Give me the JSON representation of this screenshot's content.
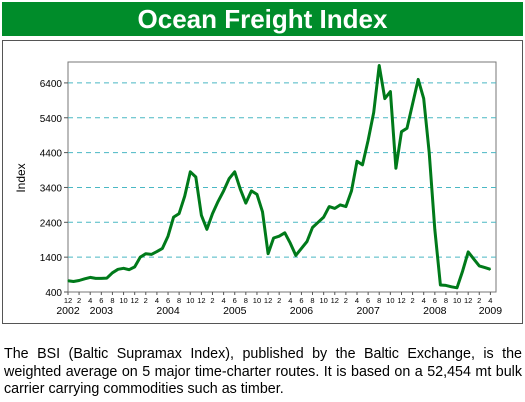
{
  "header": {
    "title": "Ocean Freight Index"
  },
  "caption": "The BSI (Baltic Supramax Index), published by the Baltic Exchange, is the weighted average on 5 major time-charter routes. It is based on a 52,454 mt bulk carrier carrying commodities such as timber.",
  "colors": {
    "banner": "#008c2a",
    "line": "#007a1a",
    "grid": "#4ab8c4"
  },
  "chart_data": {
    "type": "line",
    "title": "",
    "xlabel": "",
    "ylabel": "Index",
    "ylim": [
      400,
      7000
    ],
    "xlim": [
      2002.917,
      2009.334
    ],
    "y_ticks": [
      400,
      1400,
      2400,
      3400,
      4400,
      5400,
      6400
    ],
    "grid": "horizontal dashed",
    "legend": "none",
    "year_labels": [
      "2002",
      "2003",
      "2004",
      "2005",
      "2006",
      "2007",
      "2008",
      "2009"
    ],
    "month_ticks": [
      {
        "label": "12",
        "x": 2002.917
      },
      {
        "label": "2",
        "x": 2003.083
      },
      {
        "label": "4",
        "x": 2003.25
      },
      {
        "label": "6",
        "x": 2003.417
      },
      {
        "label": "8",
        "x": 2003.583
      },
      {
        "label": "10",
        "x": 2003.75
      },
      {
        "label": "12",
        "x": 2003.917
      },
      {
        "label": "2",
        "x": 2004.083
      },
      {
        "label": "4",
        "x": 2004.25
      },
      {
        "label": "6",
        "x": 2004.417
      },
      {
        "label": "8",
        "x": 2004.583
      },
      {
        "label": "10",
        "x": 2004.75
      },
      {
        "label": "12",
        "x": 2004.917
      },
      {
        "label": "2",
        "x": 2005.083
      },
      {
        "label": "4",
        "x": 2005.25
      },
      {
        "label": "6",
        "x": 2005.417
      },
      {
        "label": "8",
        "x": 2005.583
      },
      {
        "label": "10",
        "x": 2005.75
      },
      {
        "label": "12",
        "x": 2005.917
      },
      {
        "label": "2",
        "x": 2006.083
      },
      {
        "label": "4",
        "x": 2006.25
      },
      {
        "label": "6",
        "x": 2006.417
      },
      {
        "label": "8",
        "x": 2006.583
      },
      {
        "label": "10",
        "x": 2006.75
      },
      {
        "label": "12",
        "x": 2006.917
      },
      {
        "label": "2",
        "x": 2007.083
      },
      {
        "label": "4",
        "x": 2007.25
      },
      {
        "label": "6",
        "x": 2007.417
      },
      {
        "label": "8",
        "x": 2007.583
      },
      {
        "label": "10",
        "x": 2007.75
      },
      {
        "label": "12",
        "x": 2007.917
      },
      {
        "label": "2",
        "x": 2008.083
      },
      {
        "label": "4",
        "x": 2008.25
      },
      {
        "label": "6",
        "x": 2008.417
      },
      {
        "label": "8",
        "x": 2008.583
      },
      {
        "label": "10",
        "x": 2008.75
      },
      {
        "label": "12",
        "x": 2008.917
      },
      {
        "label": "2",
        "x": 2009.083
      },
      {
        "label": "4",
        "x": 2009.25
      }
    ],
    "year_label_x": [
      2002.917,
      2003.417,
      2004.417,
      2005.417,
      2006.417,
      2007.417,
      2008.417,
      2009.25
    ],
    "x": [
      2002.917,
      2003.0,
      2003.083,
      2003.167,
      2003.25,
      2003.333,
      2003.417,
      2003.5,
      2003.583,
      2003.667,
      2003.75,
      2003.833,
      2003.917,
      2004.0,
      2004.083,
      2004.167,
      2004.25,
      2004.333,
      2004.417,
      2004.5,
      2004.583,
      2004.667,
      2004.75,
      2004.833,
      2004.917,
      2005.0,
      2005.083,
      2005.167,
      2005.25,
      2005.333,
      2005.417,
      2005.5,
      2005.583,
      2005.667,
      2005.75,
      2005.833,
      2005.917,
      2006.0,
      2006.083,
      2006.167,
      2006.25,
      2006.333,
      2006.417,
      2006.5,
      2006.583,
      2006.667,
      2006.75,
      2006.833,
      2006.917,
      2007.0,
      2007.083,
      2007.167,
      2007.25,
      2007.333,
      2007.417,
      2007.5,
      2007.583,
      2007.667,
      2007.75,
      2007.833,
      2007.917,
      2008.0,
      2008.083,
      2008.167,
      2008.25,
      2008.333,
      2008.417,
      2008.5,
      2008.583,
      2008.667,
      2008.75,
      2008.833,
      2008.917,
      2009.0,
      2009.083,
      2009.167,
      2009.25
    ],
    "series": [
      {
        "values": [
          720,
          700,
          730,
          780,
          820,
          790,
          790,
          800,
          950,
          1050,
          1080,
          1040,
          1120,
          1400,
          1500,
          1480,
          1560,
          1650,
          2000,
          2550,
          2650,
          3150,
          3850,
          3700,
          2600,
          2200,
          2650,
          3000,
          3300,
          3650,
          3850,
          3350,
          2950,
          3300,
          3200,
          2700,
          1500,
          1950,
          2000,
          2100,
          1800,
          1450,
          1650,
          1850,
          2250,
          2400,
          2550,
          2850,
          2800,
          2900,
          2850,
          3300,
          4150,
          4050,
          4750,
          5550,
          6900,
          5950,
          6150,
          3950,
          5000,
          5100,
          5800,
          6500,
          5950,
          4400,
          2200,
          600,
          590,
          550,
          520,
          1000,
          1550,
          1350,
          1150,
          1100,
          1050
        ],
        "color": "#007a1a"
      }
    ]
  }
}
